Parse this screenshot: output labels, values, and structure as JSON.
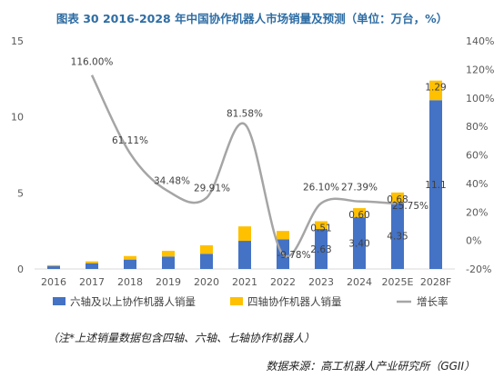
{
  "header": {
    "title": "图表 30   2016-2028 年中国协作机器人市场销量及预测（单位：万台，%）"
  },
  "footer": {
    "note": "（注*上述销量数据包含四轴、六轴、七轴协作机器人）",
    "source": "数据来源：高工机器人产业研究所（GGII）"
  },
  "chart_data": {
    "type": "bar",
    "title": "图表 30   2016-2028 年中国协作机器人市场销量及预测（单位：万台，%）",
    "categories": [
      "2016",
      "2017",
      "2018",
      "2019",
      "2020",
      "2021",
      "2022",
      "2023",
      "2024",
      "2025E",
      "2028F"
    ],
    "series": [
      {
        "name": "六轴及以上协作机器人销量",
        "kind": "bar",
        "stack": "sales",
        "color": "#4472c4",
        "values": [
          0.2,
          0.38,
          0.62,
          0.82,
          1.0,
          1.85,
          1.95,
          2.63,
          3.4,
          4.35,
          11.1
        ],
        "labels": [
          null,
          null,
          null,
          null,
          null,
          null,
          null,
          "2.63",
          "3.40",
          "4.35",
          "11.1"
        ]
      },
      {
        "name": "四轴协作机器人销量",
        "kind": "bar",
        "stack": "sales",
        "color": "#ffc000",
        "values": [
          0.05,
          0.12,
          0.23,
          0.37,
          0.56,
          0.95,
          0.55,
          0.51,
          0.6,
          0.68,
          1.29
        ],
        "labels": [
          null,
          null,
          null,
          null,
          null,
          null,
          null,
          "0.51",
          "0.60",
          "0.68",
          "1.29"
        ]
      },
      {
        "name": "增长率",
        "kind": "line",
        "axis": "right",
        "color": "#a5a5a5",
        "values": [
          null,
          116.0,
          61.11,
          34.48,
          29.91,
          81.58,
          -9.78,
          26.1,
          27.39,
          25.75,
          null
        ],
        "labels": [
          null,
          "116.00%",
          "61.11%",
          "34.48%",
          "29.91%",
          "81.58%",
          "-9.78%",
          "26.10%",
          "27.39%",
          "25.75%",
          null
        ]
      }
    ],
    "y_left": {
      "lim": [
        0,
        15
      ],
      "ticks": [
        0,
        5,
        10,
        15
      ]
    },
    "y_right": {
      "lim": [
        -20,
        140
      ],
      "ticks": [
        "-20%",
        "0%",
        "20%",
        "40%",
        "60%",
        "80%",
        "100%",
        "120%",
        "140%"
      ]
    },
    "grid": false,
    "legend": "bottom"
  }
}
